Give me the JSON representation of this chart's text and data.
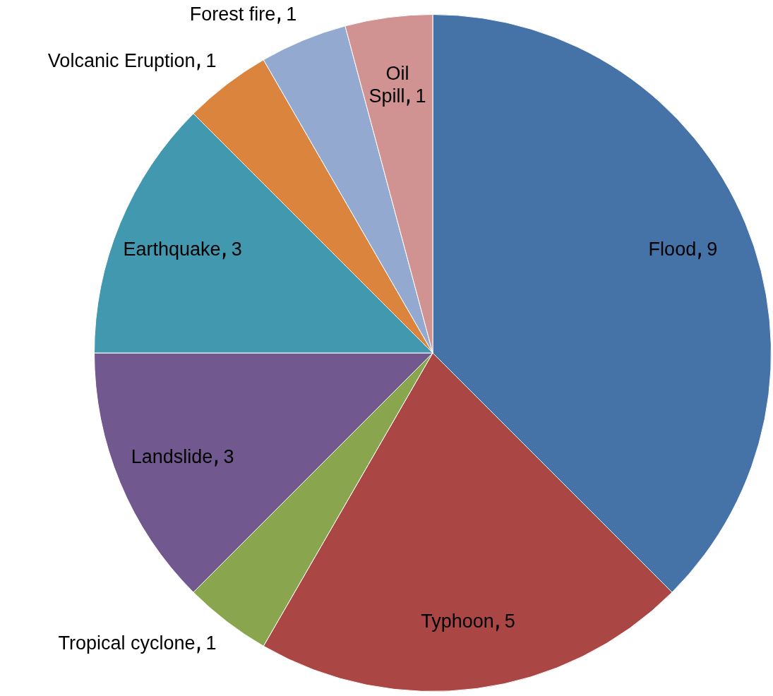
{
  "chart_data": {
    "type": "pie",
    "categories": [
      "Flood",
      "Typhoon",
      "Tropical cyclone",
      "Landslide",
      "Earthquake",
      "Volcanic Eruption",
      "Forest fire",
      "Oil Spill"
    ],
    "values": [
      9,
      5,
      1,
      3,
      3,
      1,
      1,
      1
    ],
    "colors": [
      "#4572a7",
      "#aa4643",
      "#89a54e",
      "#71588f",
      "#4198af",
      "#db843d",
      "#93a9cf",
      "#d19392"
    ],
    "data_labels": true,
    "legend": false
  }
}
